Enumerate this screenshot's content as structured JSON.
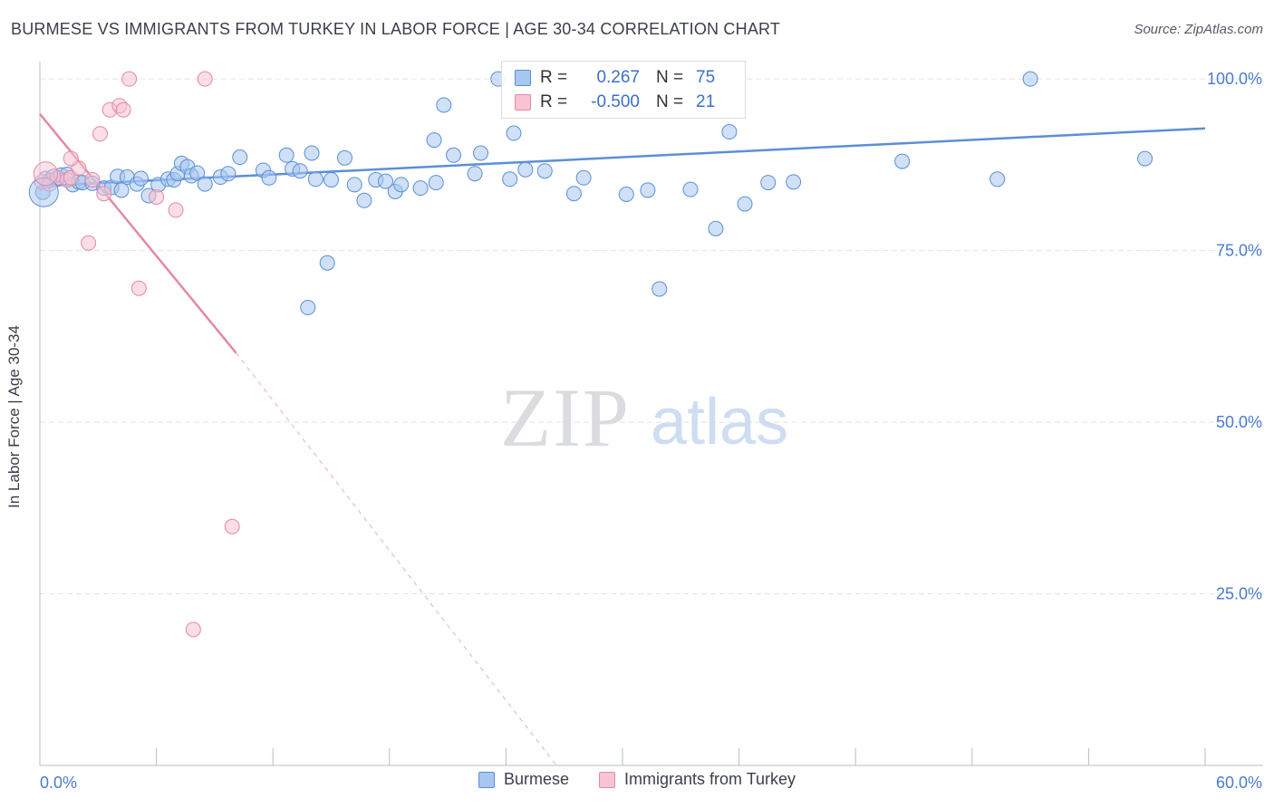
{
  "title": "BURMESE VS IMMIGRANTS FROM TURKEY IN LABOR FORCE | AGE 30-34 CORRELATION CHART",
  "source": "Source: ZipAtlas.com",
  "watermark": {
    "zip": "ZIP",
    "atlas": "atlas"
  },
  "stats": [
    {
      "r_label": "R =",
      "r_value": "0.267",
      "n_label": "N =",
      "n_value": "75",
      "color": "#a7c6f0",
      "edge": "#5b8fd6"
    },
    {
      "r_label": "R =",
      "r_value": "-0.500",
      "n_label": "N =",
      "n_value": "21",
      "color": "#f8c3d2",
      "edge": "#e389a6"
    }
  ],
  "legend": [
    {
      "label": "Burmese",
      "color": "#a7c6f0",
      "edge": "#5b8fd6"
    },
    {
      "label": "Immigrants from Turkey",
      "color": "#f8c3d2",
      "edge": "#e389a6"
    }
  ],
  "chart_data": {
    "type": "scatter",
    "title": "BURMESE VS IMMIGRANTS FROM TURKEY IN LABOR FORCE | AGE 30-34 CORRELATION CHART",
    "xlabel": "",
    "ylabel": "In Labor Force | Age 30-34",
    "xlim": [
      0,
      60
    ],
    "ylim": [
      0,
      102
    ],
    "x_tick_labels": [
      {
        "value": 0,
        "label": "0.0%"
      },
      {
        "value": 60,
        "label": "60.0%"
      }
    ],
    "y_tick_labels": [
      {
        "value": 100,
        "label": "100.0%"
      },
      {
        "value": 75,
        "label": "75.0%"
      },
      {
        "value": 50,
        "label": "50.0%"
      },
      {
        "value": 25,
        "label": "25.0%"
      }
    ],
    "series": [
      {
        "name": "Burmese",
        "color": "#5b8fd6",
        "fill": "#a7c6f0",
        "points": [
          [
            0.15,
            83.5
          ],
          [
            0.3,
            85.5
          ],
          [
            0.5,
            85.2
          ],
          [
            0.7,
            85.8
          ],
          [
            0.9,
            85.4
          ],
          [
            1.1,
            86.0
          ],
          [
            1.4,
            86.1
          ],
          [
            1.7,
            84.6
          ],
          [
            2.0,
            85.0
          ],
          [
            2.2,
            84.9
          ],
          [
            2.7,
            84.8
          ],
          [
            3.3,
            84.1
          ],
          [
            3.7,
            84.2
          ],
          [
            4.0,
            85.8
          ],
          [
            4.2,
            83.8
          ],
          [
            4.5,
            85.7
          ],
          [
            5.0,
            84.7
          ],
          [
            5.2,
            85.5
          ],
          [
            5.6,
            83.0
          ],
          [
            6.1,
            84.6
          ],
          [
            6.6,
            85.4
          ],
          [
            6.9,
            85.3
          ],
          [
            7.1,
            86.2
          ],
          [
            7.3,
            87.7
          ],
          [
            7.6,
            87.2
          ],
          [
            7.8,
            85.9
          ],
          [
            8.1,
            86.3
          ],
          [
            8.5,
            84.7
          ],
          [
            9.3,
            85.7
          ],
          [
            9.7,
            86.2
          ],
          [
            10.3,
            88.6
          ],
          [
            11.5,
            86.7
          ],
          [
            11.8,
            85.6
          ],
          [
            12.7,
            88.9
          ],
          [
            13.0,
            86.9
          ],
          [
            13.4,
            86.6
          ],
          [
            14.0,
            89.2
          ],
          [
            14.2,
            85.4
          ],
          [
            15.0,
            85.3
          ],
          [
            15.7,
            88.5
          ],
          [
            16.2,
            84.6
          ],
          [
            16.7,
            82.3
          ],
          [
            17.3,
            85.3
          ],
          [
            17.8,
            85.1
          ],
          [
            18.3,
            83.6
          ],
          [
            18.6,
            84.6
          ],
          [
            19.6,
            84.1
          ],
          [
            20.3,
            91.1
          ],
          [
            21.3,
            88.9
          ],
          [
            20.4,
            84.9
          ],
          [
            22.4,
            86.2
          ],
          [
            22.7,
            89.2
          ],
          [
            24.2,
            85.4
          ],
          [
            24.4,
            92.1
          ],
          [
            25.0,
            86.8
          ],
          [
            26.0,
            86.6
          ],
          [
            27.5,
            83.3
          ],
          [
            28.0,
            85.6
          ],
          [
            30.2,
            83.2
          ],
          [
            31.3,
            83.8
          ],
          [
            33.5,
            83.9
          ],
          [
            34.8,
            78.2
          ],
          [
            35.5,
            92.3
          ],
          [
            36.3,
            81.8
          ],
          [
            37.5,
            84.9
          ],
          [
            38.8,
            85.0
          ],
          [
            44.4,
            88.0
          ],
          [
            14.8,
            73.2
          ],
          [
            13.8,
            66.7
          ],
          [
            31.9,
            69.4
          ],
          [
            49.3,
            85.4
          ],
          [
            51.0,
            100.0
          ],
          [
            56.9,
            88.4
          ],
          [
            20.8,
            96.2
          ],
          [
            23.6,
            100.0
          ]
        ]
      },
      {
        "name": "Immigrants from Turkey",
        "color": "#e389a6",
        "fill": "#f8c3d2",
        "points": [
          [
            0.1,
            85.0
          ],
          [
            0.5,
            84.7
          ],
          [
            0.9,
            85.6
          ],
          [
            1.4,
            85.3
          ],
          [
            1.6,
            85.6
          ],
          [
            2.0,
            87.0
          ],
          [
            2.7,
            85.3
          ],
          [
            3.3,
            83.3
          ],
          [
            3.1,
            92.0
          ],
          [
            3.6,
            95.5
          ],
          [
            4.1,
            96.1
          ],
          [
            4.3,
            95.5
          ],
          [
            4.6,
            100.0
          ],
          [
            6.0,
            82.8
          ],
          [
            7.0,
            80.9
          ],
          [
            8.5,
            100.0
          ],
          [
            2.5,
            76.1
          ],
          [
            5.1,
            69.5
          ],
          [
            9.9,
            34.8
          ],
          [
            7.9,
            19.8
          ],
          [
            1.6,
            88.4
          ]
        ]
      }
    ],
    "trend_lines": [
      {
        "series": "Burmese",
        "x": [
          0,
          60
        ],
        "y": [
          84.4,
          92.8
        ],
        "style": "solid"
      },
      {
        "series": "Immigrants from Turkey",
        "x": [
          0,
          10.1
        ],
        "y": [
          94.9,
          60.1
        ],
        "style": "solid"
      },
      {
        "series": "Immigrants from Turkey",
        "x": [
          10.1,
          26.6
        ],
        "y": [
          60.1,
          0
        ],
        "style": "dashed"
      }
    ]
  }
}
